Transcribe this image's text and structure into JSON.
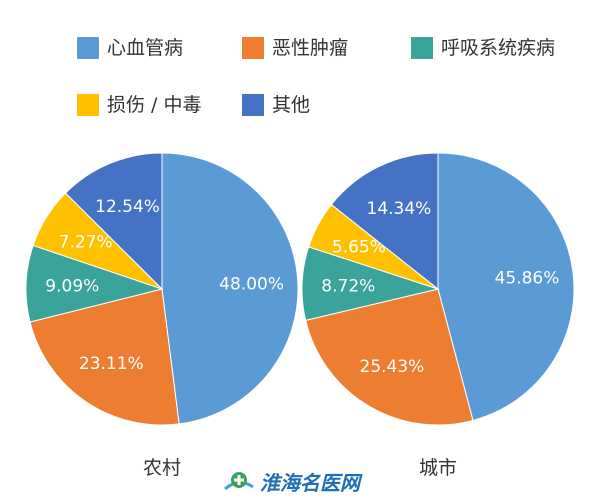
{
  "legend": [
    {
      "label": "心血管病",
      "color": "#5b9bd5"
    },
    {
      "label": "恶性肿瘤",
      "color": "#ed7d31"
    },
    {
      "label": "呼吸系统疾病",
      "color": "#3aa39a"
    },
    {
      "label": "损伤 / 中毒",
      "color": "#ffc000"
    },
    {
      "label": "其他",
      "color": "#4472c4"
    }
  ],
  "chart_data": [
    {
      "type": "pie",
      "category": "农村",
      "slices": [
        {
          "name": "心血管病",
          "value": 48.0,
          "label": "48.00%",
          "color": "#5b9bd5"
        },
        {
          "name": "恶性肿瘤",
          "value": 23.11,
          "label": "23.11%",
          "color": "#ed7d31"
        },
        {
          "name": "呼吸系统疾病",
          "value": 9.09,
          "label": "9.09%",
          "color": "#3aa39a"
        },
        {
          "name": "损伤 / 中毒",
          "value": 7.27,
          "label": "7.27%",
          "color": "#ffc000"
        },
        {
          "name": "其他",
          "value": 12.54,
          "label": "12.54%",
          "color": "#4472c4"
        }
      ]
    },
    {
      "type": "pie",
      "category": "城市",
      "slices": [
        {
          "name": "心血管病",
          "value": 45.86,
          "label": "45.86%",
          "color": "#5b9bd5"
        },
        {
          "name": "恶性肿瘤",
          "value": 25.43,
          "label": "25.43%",
          "color": "#ed7d31"
        },
        {
          "name": "呼吸系统疾病",
          "value": 8.72,
          "label": "8.72%",
          "color": "#3aa39a"
        },
        {
          "name": "损伤 / 中毒",
          "value": 5.65,
          "label": "5.65%",
          "color": "#ffc000"
        },
        {
          "name": "其他",
          "value": 14.34,
          "label": "14.34%",
          "color": "#4472c4"
        }
      ]
    }
  ],
  "watermark": {
    "text": "淮海名医网",
    "icon": "medical-cross-logo-icon"
  }
}
